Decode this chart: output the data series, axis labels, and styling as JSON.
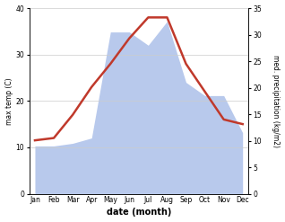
{
  "months": [
    "Jan",
    "Feb",
    "Mar",
    "Apr",
    "May",
    "Jun",
    "Jul",
    "Aug",
    "Sep",
    "Oct",
    "Nov",
    "Dec"
  ],
  "temperature": [
    11.5,
    12.0,
    17.0,
    23.0,
    28.0,
    33.5,
    38.0,
    38.0,
    28.0,
    22.0,
    16.0,
    15.0
  ],
  "precipitation": [
    9.0,
    9.0,
    9.5,
    10.5,
    30.5,
    30.5,
    28.0,
    32.5,
    21.0,
    18.5,
    18.5,
    11.5
  ],
  "temp_color": "#c0392b",
  "precip_color": "#b8c9ec",
  "temp_ylim": [
    0,
    40
  ],
  "precip_ylim": [
    0,
    35
  ],
  "temp_yticks": [
    0,
    10,
    20,
    30,
    40
  ],
  "precip_yticks": [
    0,
    5,
    10,
    15,
    20,
    25,
    30,
    35
  ],
  "xlabel": "date (month)",
  "ylabel_left": "max temp (C)",
  "ylabel_right": "med. precipitation (kg/m2)",
  "background_color": "#ffffff"
}
